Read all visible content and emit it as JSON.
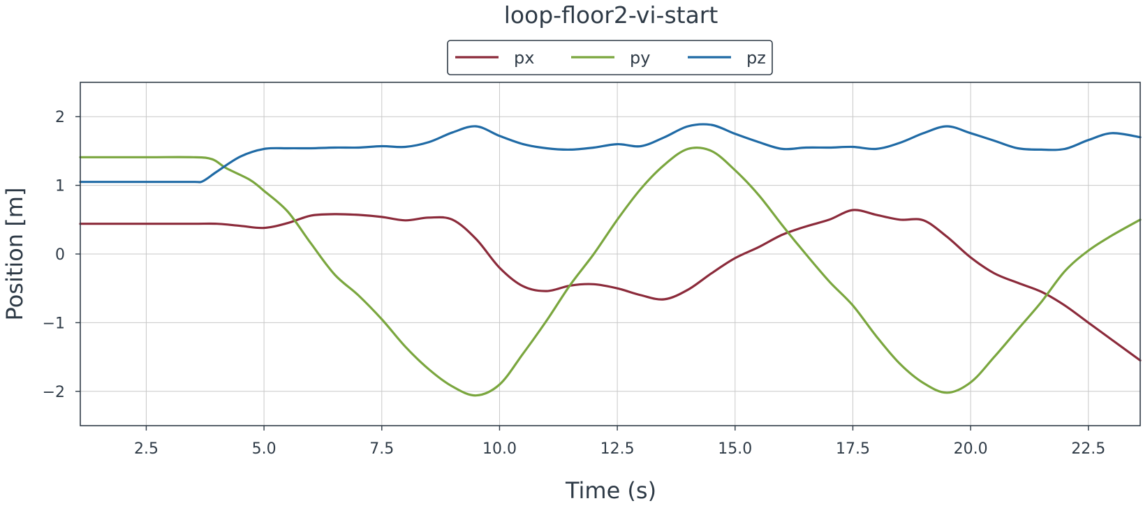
{
  "chart_data": {
    "type": "line",
    "title": "loop-floor2-vi-start",
    "xlabel": "Time (s)",
    "ylabel": "Position [m]",
    "xlim": [
      1.1,
      23.6
    ],
    "ylim": [
      -2.5,
      2.5
    ],
    "xticks": [
      2.5,
      5.0,
      7.5,
      10.0,
      12.5,
      15.0,
      17.5,
      20.0,
      22.5
    ],
    "xtick_labels": [
      "2.5",
      "5.0",
      "7.5",
      "10.0",
      "12.5",
      "15.0",
      "17.5",
      "20.0",
      "22.5"
    ],
    "yticks": [
      2,
      1,
      0,
      -1,
      -2
    ],
    "ytick_labels": [
      "2",
      "1",
      "0",
      "−1",
      "−2"
    ],
    "grid": true,
    "legend_position": "top-center",
    "series": [
      {
        "name": "px",
        "color": "#8b2a3a",
        "points": [
          [
            1.1,
            0.44
          ],
          [
            2.5,
            0.44
          ],
          [
            3.5,
            0.44
          ],
          [
            4.0,
            0.44
          ],
          [
            4.5,
            0.41
          ],
          [
            5.0,
            0.38
          ],
          [
            5.5,
            0.45
          ],
          [
            6.0,
            0.56
          ],
          [
            6.5,
            0.58
          ],
          [
            7.0,
            0.57
          ],
          [
            7.5,
            0.54
          ],
          [
            8.0,
            0.49
          ],
          [
            8.5,
            0.53
          ],
          [
            9.0,
            0.5
          ],
          [
            9.5,
            0.22
          ],
          [
            10.0,
            -0.2
          ],
          [
            10.5,
            -0.47
          ],
          [
            11.0,
            -0.54
          ],
          [
            11.5,
            -0.46
          ],
          [
            12.0,
            -0.44
          ],
          [
            12.5,
            -0.5
          ],
          [
            13.0,
            -0.6
          ],
          [
            13.5,
            -0.66
          ],
          [
            14.0,
            -0.52
          ],
          [
            14.5,
            -0.28
          ],
          [
            15.0,
            -0.06
          ],
          [
            15.5,
            0.1
          ],
          [
            16.0,
            0.28
          ],
          [
            16.5,
            0.4
          ],
          [
            17.0,
            0.5
          ],
          [
            17.5,
            0.64
          ],
          [
            18.0,
            0.57
          ],
          [
            18.5,
            0.5
          ],
          [
            19.0,
            0.49
          ],
          [
            19.5,
            0.25
          ],
          [
            20.0,
            -0.05
          ],
          [
            20.5,
            -0.28
          ],
          [
            21.0,
            -0.42
          ],
          [
            21.5,
            -0.55
          ],
          [
            22.0,
            -0.75
          ],
          [
            22.5,
            -1.0
          ],
          [
            23.0,
            -1.25
          ],
          [
            23.6,
            -1.55
          ]
        ]
      },
      {
        "name": "py",
        "color": "#7aa63e",
        "points": [
          [
            1.1,
            1.41
          ],
          [
            2.5,
            1.41
          ],
          [
            3.5,
            1.41
          ],
          [
            3.9,
            1.38
          ],
          [
            4.2,
            1.25
          ],
          [
            4.7,
            1.08
          ],
          [
            5.0,
            0.92
          ],
          [
            5.5,
            0.62
          ],
          [
            6.0,
            0.15
          ],
          [
            6.5,
            -0.3
          ],
          [
            7.0,
            -0.6
          ],
          [
            7.5,
            -0.95
          ],
          [
            8.0,
            -1.35
          ],
          [
            8.5,
            -1.68
          ],
          [
            9.0,
            -1.93
          ],
          [
            9.5,
            -2.06
          ],
          [
            10.0,
            -1.9
          ],
          [
            10.5,
            -1.45
          ],
          [
            11.0,
            -0.97
          ],
          [
            11.5,
            -0.45
          ],
          [
            12.0,
            0.0
          ],
          [
            12.5,
            0.5
          ],
          [
            13.0,
            0.95
          ],
          [
            13.5,
            1.3
          ],
          [
            14.0,
            1.53
          ],
          [
            14.5,
            1.5
          ],
          [
            15.0,
            1.22
          ],
          [
            15.5,
            0.86
          ],
          [
            16.0,
            0.42
          ],
          [
            16.5,
            0.0
          ],
          [
            17.0,
            -0.4
          ],
          [
            17.5,
            -0.75
          ],
          [
            18.0,
            -1.2
          ],
          [
            18.5,
            -1.6
          ],
          [
            19.0,
            -1.88
          ],
          [
            19.5,
            -2.02
          ],
          [
            20.0,
            -1.87
          ],
          [
            20.5,
            -1.5
          ],
          [
            21.0,
            -1.1
          ],
          [
            21.5,
            -0.7
          ],
          [
            22.0,
            -0.25
          ],
          [
            22.5,
            0.05
          ],
          [
            23.0,
            0.27
          ],
          [
            23.6,
            0.5
          ]
        ]
      },
      {
        "name": "pz",
        "color": "#1f6aa5",
        "points": [
          [
            1.1,
            1.05
          ],
          [
            2.5,
            1.05
          ],
          [
            3.5,
            1.05
          ],
          [
            3.7,
            1.06
          ],
          [
            4.0,
            1.2
          ],
          [
            4.5,
            1.42
          ],
          [
            5.0,
            1.53
          ],
          [
            5.5,
            1.54
          ],
          [
            6.0,
            1.54
          ],
          [
            6.5,
            1.55
          ],
          [
            7.0,
            1.55
          ],
          [
            7.5,
            1.57
          ],
          [
            8.0,
            1.56
          ],
          [
            8.5,
            1.63
          ],
          [
            9.0,
            1.77
          ],
          [
            9.5,
            1.86
          ],
          [
            10.0,
            1.72
          ],
          [
            10.5,
            1.6
          ],
          [
            11.0,
            1.54
          ],
          [
            11.5,
            1.52
          ],
          [
            12.0,
            1.55
          ],
          [
            12.5,
            1.6
          ],
          [
            13.0,
            1.57
          ],
          [
            13.5,
            1.7
          ],
          [
            14.0,
            1.86
          ],
          [
            14.5,
            1.88
          ],
          [
            15.0,
            1.75
          ],
          [
            15.5,
            1.63
          ],
          [
            16.0,
            1.53
          ],
          [
            16.5,
            1.55
          ],
          [
            17.0,
            1.55
          ],
          [
            17.5,
            1.56
          ],
          [
            18.0,
            1.53
          ],
          [
            18.5,
            1.62
          ],
          [
            19.0,
            1.76
          ],
          [
            19.5,
            1.86
          ],
          [
            20.0,
            1.76
          ],
          [
            20.5,
            1.65
          ],
          [
            21.0,
            1.54
          ],
          [
            21.5,
            1.52
          ],
          [
            22.0,
            1.53
          ],
          [
            22.5,
            1.66
          ],
          [
            23.0,
            1.76
          ],
          [
            23.6,
            1.7
          ]
        ]
      }
    ]
  }
}
